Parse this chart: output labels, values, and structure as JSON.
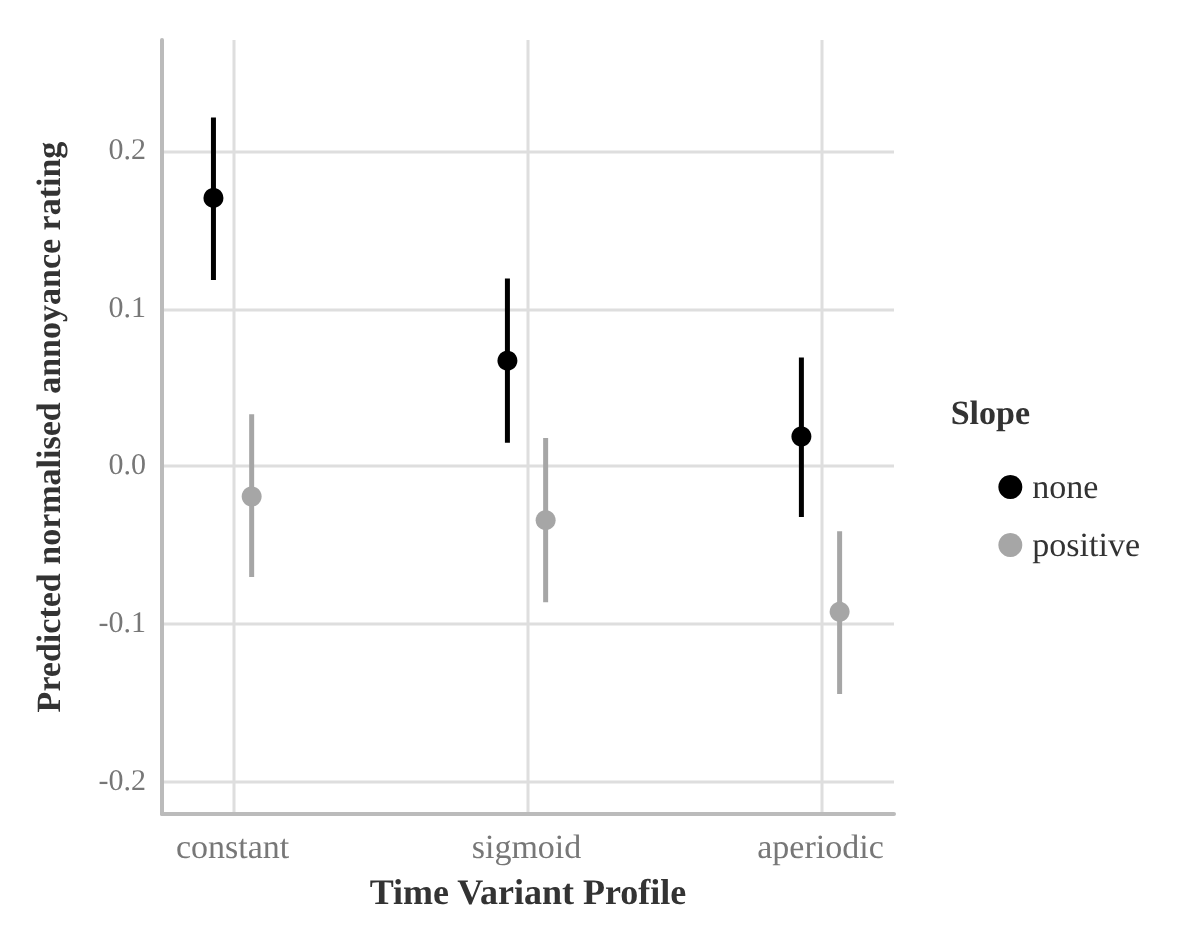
{
  "chart_data": {
    "type": "scatter",
    "xlabel": "Time Variant Profile",
    "ylabel": "Predicted normalised annoyance rating",
    "legend_title": "Slope",
    "categories": [
      "constant",
      "sigmoid",
      "aperiodic"
    ],
    "series": [
      {
        "name": "none",
        "color": "#000000",
        "values": [
          0.17,
          0.067,
          0.019
        ],
        "errors": [
          [
            0.118,
            0.221
          ],
          [
            0.015,
            0.119
          ],
          [
            -0.032,
            0.069
          ]
        ]
      },
      {
        "name": "positive",
        "color": "#a6a6a6",
        "values": [
          -0.019,
          -0.034,
          -0.092
        ],
        "errors": [
          [
            -0.07,
            0.033
          ],
          [
            -0.086,
            0.018
          ],
          [
            -0.144,
            -0.041
          ]
        ]
      }
    ],
    "ylim": [
      -0.22,
      0.27
    ],
    "yticks": [
      {
        "value": -0.2,
        "label": "-0.2"
      },
      {
        "value": -0.1,
        "label": "-0.1"
      },
      {
        "value": 0,
        "label": "0.0"
      },
      {
        "value": 0.1,
        "label": "0.1"
      },
      {
        "value": 0.2,
        "label": "0.2"
      }
    ],
    "grid": true,
    "legend": "right",
    "marker": "circle"
  }
}
